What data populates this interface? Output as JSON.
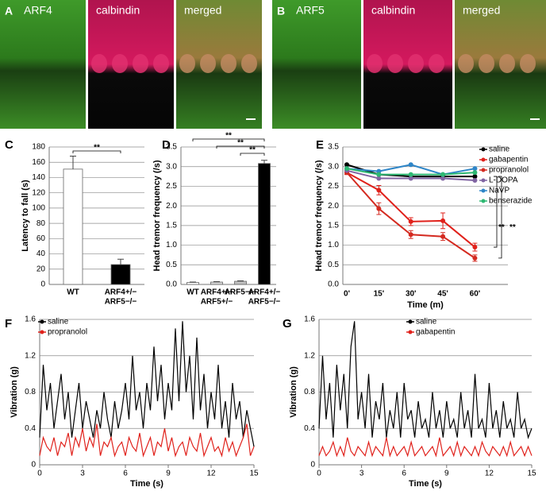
{
  "image_panels": [
    {
      "panel": "A",
      "labels": [
        "ARF4",
        "calbindin",
        "merged"
      ]
    },
    {
      "panel": "B",
      "labels": [
        "ARF5",
        "calbindin",
        "merged"
      ]
    }
  ],
  "chart_data": [
    {
      "type": "bar",
      "panel": "C",
      "ylabel": "Latency to fall (s)",
      "categories": [
        [
          "WT"
        ],
        [
          "ARF4+/−",
          "ARF5−/−"
        ]
      ],
      "values": [
        151,
        26
      ],
      "errors": [
        17,
        7
      ],
      "colors": [
        "#ffffff",
        "#000000"
      ],
      "ylim": [
        0,
        180
      ],
      "yticks": [
        0,
        20,
        40,
        60,
        80,
        100,
        120,
        140,
        160,
        180
      ],
      "grid": true,
      "annotations": [
        "**"
      ]
    },
    {
      "type": "bar",
      "panel": "D",
      "ylabel": "Head tremor frequency (/s)",
      "categories": [
        [
          "WT"
        ],
        [
          "ARF4+/−",
          "ARF5+/−"
        ],
        [
          "ARF5−/−"
        ],
        [
          "ARF4+/−",
          "ARF5−/−"
        ]
      ],
      "values": [
        0.05,
        0.06,
        0.08,
        3.08
      ],
      "errors": [
        0.01,
        0.01,
        0.01,
        0.08
      ],
      "colors": [
        "#ffffff",
        "#d9d9d9",
        "#bfbfbf",
        "#000000"
      ],
      "ylim": [
        0,
        3.5
      ],
      "yticks": [
        {
          "value": 0,
          "label": "0.0"
        },
        0.5,
        {
          "value": 1,
          "label": "1.0"
        },
        1.5,
        {
          "value": 2,
          "label": "2.0"
        },
        2.5,
        {
          "value": 3,
          "label": "3.0"
        },
        3.5
      ],
      "grid": true,
      "annotations": [
        "**",
        "**",
        "**"
      ]
    },
    {
      "type": "line",
      "panel": "E",
      "ylabel": "Head tremor frequency (/s)",
      "xlabel": "Time (m)",
      "categories": [
        "0'",
        "15'",
        "30'",
        "45'",
        "60'"
      ],
      "series": [
        {
          "name": "saline",
          "color": "#000000",
          "values": [
            3.05,
            2.8,
            2.75,
            2.75,
            2.75
          ]
        },
        {
          "name": "gabapentin",
          "color": "#e0211b",
          "values": [
            2.85,
            2.4,
            1.6,
            1.62,
            0.95
          ],
          "errors": [
            0.05,
            0.12,
            0.1,
            0.2,
            0.1
          ]
        },
        {
          "name": "propranolol",
          "color": "#d42a20",
          "values": [
            2.85,
            1.93,
            1.27,
            1.22,
            0.67
          ],
          "errors": [
            0.05,
            0.15,
            0.1,
            0.1,
            0.08
          ]
        },
        {
          "name": "L-DOPA",
          "color": "#8064a2",
          "values": [
            2.9,
            2.7,
            2.7,
            2.7,
            2.65
          ]
        },
        {
          "name": "NaVP",
          "color": "#2e86c8",
          "values": [
            2.95,
            2.88,
            3.05,
            2.8,
            2.95
          ]
        },
        {
          "name": "benserazide",
          "color": "#2eb872",
          "values": [
            2.95,
            2.8,
            2.8,
            2.8,
            2.85
          ]
        }
      ],
      "ylim": [
        0,
        3.5
      ],
      "yticks": [
        {
          "value": 0,
          "label": "0.0"
        },
        0.5,
        {
          "value": 1,
          "label": "1.0"
        },
        1.5,
        {
          "value": 2,
          "label": "2.0"
        },
        2.5,
        {
          "value": 3,
          "label": "3.0"
        },
        3.5
      ],
      "grid": true,
      "legend": "upper right",
      "annotations": [
        "**",
        "**"
      ]
    },
    {
      "type": "line",
      "panel": "F",
      "ylabel": "Vibration (g)",
      "xlabel": "Time (s)",
      "x": [
        0,
        0.25,
        0.5,
        0.75,
        1,
        1.25,
        1.5,
        1.75,
        2,
        2.25,
        2.5,
        2.75,
        3,
        3.25,
        3.5,
        3.75,
        4,
        4.25,
        4.5,
        4.75,
        5,
        5.25,
        5.5,
        5.75,
        6,
        6.25,
        6.5,
        6.75,
        7,
        7.25,
        7.5,
        7.75,
        8,
        8.25,
        8.5,
        8.75,
        9,
        9.25,
        9.5,
        9.75,
        10,
        10.25,
        10.5,
        10.75,
        11,
        11.25,
        11.5,
        11.75,
        12,
        12.25,
        12.5,
        12.75,
        13,
        13.25,
        13.5,
        13.75,
        14,
        14.25,
        14.5,
        14.75,
        15
      ],
      "series": [
        {
          "name": "saline",
          "color": "#000000",
          "values": [
            0.3,
            1.1,
            0.6,
            0.9,
            0.4,
            0.7,
            1.0,
            0.5,
            0.8,
            0.3,
            0.6,
            0.9,
            0.4,
            0.7,
            0.5,
            0.3,
            0.6,
            0.4,
            0.8,
            0.5,
            0.3,
            0.7,
            0.4,
            0.6,
            0.9,
            0.5,
            1.2,
            0.6,
            0.8,
            0.4,
            0.9,
            0.6,
            1.3,
            0.7,
            1.1,
            0.5,
            0.9,
            0.6,
            1.5,
            0.7,
            1.58,
            0.8,
            1.2,
            0.5,
            1.4,
            0.6,
            1.0,
            0.4,
            0.8,
            0.5,
            1.1,
            0.4,
            0.7,
            0.3,
            0.9,
            0.5,
            0.7,
            0.3,
            0.6,
            0.4,
            0.2
          ]
        },
        {
          "name": "propranolol",
          "color": "#e0211b",
          "values": [
            0.1,
            0.3,
            0.2,
            0.15,
            0.3,
            0.1,
            0.25,
            0.2,
            0.35,
            0.1,
            0.3,
            0.2,
            0.4,
            0.15,
            0.3,
            0.2,
            0.45,
            0.1,
            0.25,
            0.2,
            0.3,
            0.1,
            0.2,
            0.25,
            0.1,
            0.3,
            0.2,
            0.15,
            0.35,
            0.1,
            0.2,
            0.3,
            0.1,
            0.25,
            0.2,
            0.4,
            0.15,
            0.3,
            0.1,
            0.2,
            0.25,
            0.1,
            0.3,
            0.2,
            0.15,
            0.35,
            0.1,
            0.2,
            0.3,
            0.15,
            0.2,
            0.1,
            0.3,
            0.15,
            0.25,
            0.1,
            0.2,
            0.3,
            0.45,
            0.1,
            0.2
          ]
        }
      ],
      "xlim": [
        0,
        15
      ],
      "xticks": [
        0,
        3,
        6,
        9,
        12,
        15
      ],
      "ylim": [
        0,
        1.6
      ],
      "yticks": [
        0,
        0.4,
        0.8,
        1.2,
        1.6
      ],
      "grid": true,
      "legend": "upper left"
    },
    {
      "type": "line",
      "panel": "G",
      "ylabel": "Vibration (g)",
      "xlabel": "Time (s)",
      "x": [
        0,
        0.25,
        0.5,
        0.75,
        1,
        1.25,
        1.5,
        1.75,
        2,
        2.25,
        2.5,
        2.75,
        3,
        3.25,
        3.5,
        3.75,
        4,
        4.25,
        4.5,
        4.75,
        5,
        5.25,
        5.5,
        5.75,
        6,
        6.25,
        6.5,
        6.75,
        7,
        7.25,
        7.5,
        7.75,
        8,
        8.25,
        8.5,
        8.75,
        9,
        9.25,
        9.5,
        9.75,
        10,
        10.25,
        10.5,
        10.75,
        11,
        11.25,
        11.5,
        11.75,
        12,
        12.25,
        12.5,
        12.75,
        13,
        13.25,
        13.5,
        13.75,
        14,
        14.25,
        14.5,
        14.75,
        15
      ],
      "series": [
        {
          "name": "saline",
          "color": "#000000",
          "values": [
            0.4,
            1.2,
            0.5,
            0.9,
            0.3,
            1.1,
            0.6,
            1.0,
            0.4,
            1.3,
            1.58,
            0.5,
            0.8,
            0.4,
            1.0,
            0.3,
            0.7,
            0.5,
            0.9,
            0.3,
            0.6,
            0.4,
            0.8,
            0.3,
            0.9,
            0.5,
            0.6,
            0.3,
            0.7,
            0.4,
            0.5,
            0.3,
            0.8,
            0.4,
            0.6,
            0.3,
            0.7,
            0.4,
            0.5,
            0.3,
            0.8,
            0.4,
            0.6,
            0.3,
            1.0,
            0.4,
            0.5,
            0.3,
            0.9,
            0.4,
            0.6,
            0.3,
            0.7,
            0.4,
            0.5,
            0.3,
            0.8,
            0.4,
            0.5,
            0.3,
            0.4
          ]
        },
        {
          "name": "gabapentin",
          "color": "#e0211b",
          "values": [
            0.1,
            0.2,
            0.1,
            0.15,
            0.25,
            0.1,
            0.2,
            0.1,
            0.3,
            0.15,
            0.1,
            0.2,
            0.15,
            0.1,
            0.25,
            0.1,
            0.2,
            0.15,
            0.1,
            0.3,
            0.1,
            0.2,
            0.1,
            0.15,
            0.2,
            0.1,
            0.25,
            0.1,
            0.15,
            0.2,
            0.1,
            0.15,
            0.2,
            0.1,
            0.3,
            0.1,
            0.15,
            0.2,
            0.1,
            0.25,
            0.1,
            0.2,
            0.15,
            0.1,
            0.2,
            0.1,
            0.25,
            0.15,
            0.1,
            0.2,
            0.15,
            0.1,
            0.2,
            0.1,
            0.25,
            0.1,
            0.15,
            0.2,
            0.1,
            0.2,
            0.1
          ]
        }
      ],
      "xlim": [
        0,
        15
      ],
      "xticks": [
        0,
        3,
        6,
        9,
        12,
        15
      ],
      "ylim": [
        0,
        1.6
      ],
      "yticks": [
        0,
        0.4,
        0.8,
        1.2,
        1.6
      ],
      "grid": true,
      "legend": "upper center"
    }
  ]
}
